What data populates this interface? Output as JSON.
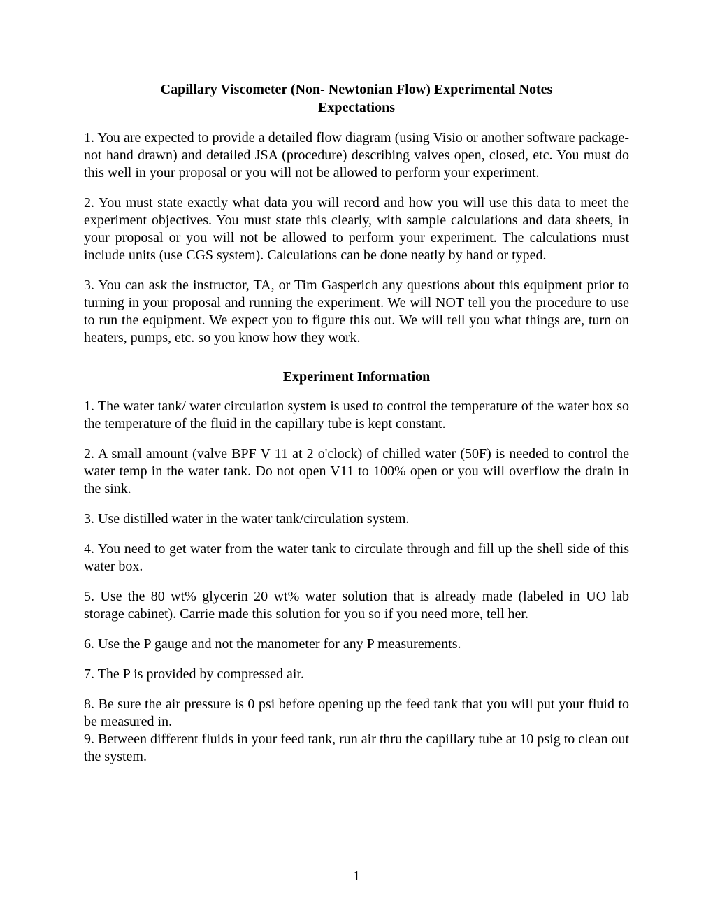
{
  "title_line1": "Capillary Viscometer (Non- Newtonian Flow) Experimental Notes",
  "title_line2": "Expectations",
  "expectations": {
    "p1": "1.  You are expected to provide a detailed flow diagram (using Visio or another software package- not hand drawn) and detailed JSA (procedure) describing valves open, closed, etc. You must do this well in your proposal or you will not be allowed to perform your experiment.",
    "p2": "2. You must state exactly what data you will record and how you will use this data to meet the experiment objectives. You must state this clearly, with sample calculations and data sheets, in your proposal or you will not be allowed to perform your experiment. The calculations must include units (use CGS system). Calculations can be done neatly by hand or typed.",
    "p3": "3. You can ask the instructor, TA, or Tim Gasperich any questions about this equipment prior to turning in your proposal and running the experiment.  We will NOT tell you the procedure to use to run the equipment. We expect you to figure this out. We will tell you what things are, turn on heaters, pumps, etc. so you know how they work."
  },
  "info_title": "Experiment Information",
  "info": {
    "p1": "1. The water tank/ water circulation system is used to control the temperature of the water box so the temperature of the fluid in the capillary tube is kept constant.",
    "p2": "2. A small amount (valve BPF V 11 at 2 o'clock) of chilled water (50F) is needed to control the water temp in the water tank.  Do not open V11 to 100% open or you will overflow the drain in the sink.",
    "p3": "3. Use distilled water in the water tank/circulation system.",
    "p4": "4. You need to get water from the water tank to circulate through and fill up the shell side of this water box.",
    "p5": "5. Use the 80 wt% glycerin 20 wt% water solution that is already made (labeled in UO lab storage cabinet). Carrie made this solution for you so if you need more, tell her.",
    "p6": "6. Use the P gauge and not the manometer for any P measurements.",
    "p7": "7.  The P is provided by compressed air.",
    "p8": "8. Be sure the air pressure is 0 psi before opening up the feed tank that you will put your fluid to be measured in.",
    "p9": "9. Between different fluids in your feed tank, run air thru the capillary tube at 10 psig to clean out the system."
  },
  "page_number": "1"
}
